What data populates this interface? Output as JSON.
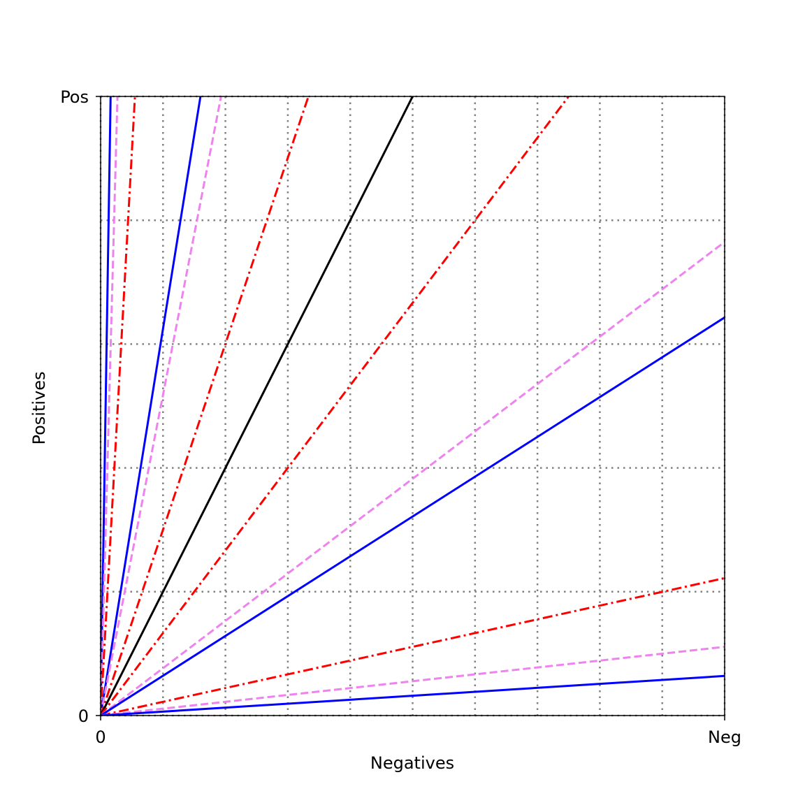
{
  "chart_data": {
    "type": "line",
    "title": "",
    "xlabel": "Negatives",
    "ylabel": "Positives",
    "xlim": [
      0,
      1
    ],
    "ylim": [
      0,
      1
    ],
    "x_ticks": [
      "0",
      "Neg"
    ],
    "y_ticks": [
      "0",
      "Pos"
    ],
    "grid": true,
    "grid_style": "dotted",
    "grid_color": "#808080",
    "legend": "none",
    "series": [
      {
        "style": "solid",
        "color": "#0000ff",
        "points": [
          [
            0,
            0
          ],
          [
            0.016,
            1
          ]
        ]
      },
      {
        "style": "dashed",
        "color": "#ee82ee",
        "points": [
          [
            0,
            0
          ],
          [
            0.027,
            1
          ]
        ]
      },
      {
        "style": "dashdot",
        "color": "#ff0000",
        "points": [
          [
            0,
            0
          ],
          [
            0.055,
            1
          ]
        ]
      },
      {
        "style": "solid",
        "color": "#0000ff",
        "points": [
          [
            0,
            0
          ],
          [
            0.16,
            1
          ]
        ]
      },
      {
        "style": "dashed",
        "color": "#ee82ee",
        "points": [
          [
            0,
            0
          ],
          [
            0.193,
            1
          ]
        ]
      },
      {
        "style": "dashdot",
        "color": "#ff0000",
        "points": [
          [
            0,
            0
          ],
          [
            0.333,
            1
          ]
        ]
      },
      {
        "style": "solid",
        "color": "#000000",
        "points": [
          [
            0,
            0
          ],
          [
            0.5,
            1
          ]
        ]
      },
      {
        "style": "dashdot",
        "color": "#ff0000",
        "points": [
          [
            0,
            0
          ],
          [
            0.75,
            1
          ]
        ]
      },
      {
        "style": "dashed",
        "color": "#ee82ee",
        "points": [
          [
            0,
            0
          ],
          [
            1,
            0.765
          ]
        ]
      },
      {
        "style": "solid",
        "color": "#0000ff",
        "points": [
          [
            0,
            0
          ],
          [
            1,
            0.643
          ]
        ]
      },
      {
        "style": "dashdot",
        "color": "#ff0000",
        "points": [
          [
            0,
            0
          ],
          [
            1,
            0.222
          ]
        ]
      },
      {
        "style": "dashed",
        "color": "#ee82ee",
        "points": [
          [
            0,
            0
          ],
          [
            1,
            0.111
          ]
        ]
      },
      {
        "style": "solid",
        "color": "#0000ff",
        "points": [
          [
            0,
            0
          ],
          [
            1,
            0.064
          ]
        ]
      }
    ]
  }
}
